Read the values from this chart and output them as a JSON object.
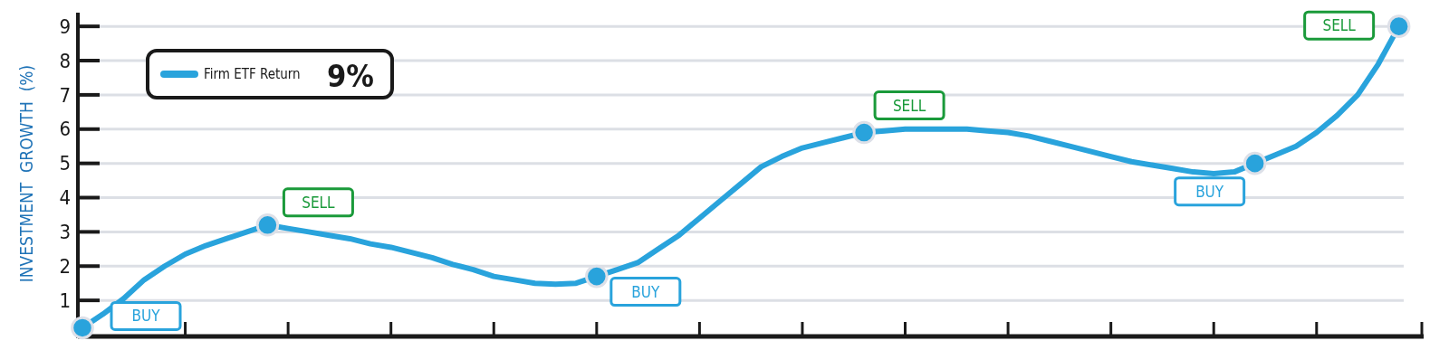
{
  "chart_data": {
    "type": "line",
    "ylabel": "INVESTMENT  GROWTH  (%)",
    "categories": [
      null,
      null,
      null,
      null,
      null,
      null,
      null,
      null,
      null,
      null,
      null,
      null,
      null,
      null,
      null,
      null,
      null,
      null,
      null,
      null,
      null,
      null,
      null,
      null,
      null,
      null,
      null,
      null,
      null,
      null,
      null,
      null,
      null,
      null,
      null,
      null,
      null,
      null,
      null,
      null,
      null,
      null,
      null,
      null,
      null,
      null,
      null,
      null,
      null,
      null,
      null,
      null,
      null,
      null,
      null,
      null,
      null,
      null,
      null,
      null,
      null,
      null,
      null,
      null,
      null
    ],
    "series": [
      {
        "name": "Firm ETF Return",
        "color": "#29a3dc",
        "values": [
          0.2,
          0.6,
          1.05,
          1.6,
          2.0,
          2.35,
          2.6,
          2.8,
          3.0,
          3.2,
          3.1,
          3.0,
          2.9,
          2.8,
          2.65,
          2.55,
          2.4,
          2.25,
          2.05,
          1.9,
          1.7,
          1.6,
          1.5,
          1.47,
          1.5,
          1.7,
          1.9,
          2.1,
          2.5,
          2.9,
          3.4,
          3.9,
          4.4,
          4.9,
          5.2,
          5.45,
          5.6,
          5.75,
          5.9,
          5.95,
          6.0,
          6.0,
          6.0,
          6.0,
          5.95,
          5.9,
          5.8,
          5.65,
          5.5,
          5.35,
          5.2,
          5.05,
          4.95,
          4.85,
          4.75,
          4.7,
          4.75,
          5.0,
          5.25,
          5.5,
          5.9,
          6.4,
          7.0,
          7.9,
          9.0
        ]
      },
      {
        "type": "scatter",
        "marker": "circle",
        "color": "#29a3dc",
        "values": [
          0.2,
          null,
          null,
          null,
          null,
          null,
          null,
          null,
          null,
          3.2,
          null,
          null,
          null,
          null,
          null,
          null,
          null,
          null,
          null,
          null,
          null,
          null,
          null,
          null,
          null,
          1.7,
          null,
          null,
          null,
          null,
          null,
          null,
          null,
          null,
          null,
          null,
          null,
          null,
          5.9,
          null,
          null,
          null,
          null,
          null,
          null,
          null,
          null,
          null,
          null,
          null,
          null,
          null,
          null,
          null,
          null,
          null,
          null,
          5.0,
          null,
          null,
          null,
          null,
          null,
          null,
          9.0
        ]
      }
    ],
    "ylim": [
      0,
      9.4
    ],
    "yticks": [
      1,
      2,
      3,
      4,
      5,
      6,
      7,
      8,
      9
    ],
    "tick_labels": "y",
    "grid": "y",
    "legend": "top left",
    "line_style": "solid",
    "annotations": [
      "9%",
      "BUY",
      "SELL",
      "BUY",
      "SELL",
      "BUY",
      "SELL"
    ]
  }
}
